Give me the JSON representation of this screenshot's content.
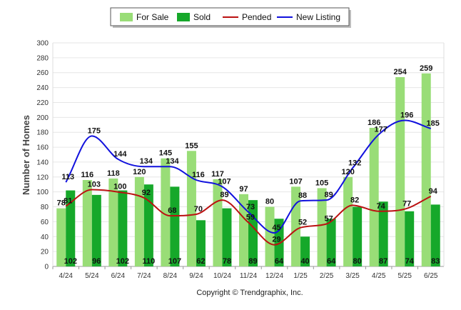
{
  "chart_data": {
    "type": "bar",
    "categories": [
      "4/24",
      "5/24",
      "6/24",
      "7/24",
      "8/24",
      "9/24",
      "10/24",
      "11/24",
      "12/24",
      "1/25",
      "2/25",
      "3/25",
      "4/25",
      "5/25",
      "6/25"
    ],
    "ylabel": "Number of Homes",
    "ylim": [
      0,
      300
    ],
    "yticks": [
      0,
      20,
      40,
      60,
      80,
      100,
      120,
      140,
      160,
      180,
      200,
      220,
      240,
      260,
      280,
      300
    ],
    "grid": true,
    "legend_position": "top",
    "series": [
      {
        "name": "For Sale",
        "kind": "bar",
        "color": "#99dd77",
        "values": [
          78,
          116,
          118,
          120,
          145,
          155,
          117,
          97,
          80,
          107,
          105,
          120,
          186,
          254,
          259
        ]
      },
      {
        "name": "Sold",
        "kind": "bar",
        "color": "#16a82a",
        "values": [
          102,
          96,
          102,
          110,
          107,
          62,
          78,
          89,
          64,
          40,
          64,
          80,
          87,
          74,
          83
        ]
      },
      {
        "name": "Pended",
        "kind": "line",
        "color": "#bb1111",
        "values": [
          81,
          103,
          100,
          92,
          68,
          70,
          89,
          59,
          29,
          52,
          57,
          82,
          74,
          77,
          94
        ]
      },
      {
        "name": "New Listing",
        "kind": "line",
        "color": "#1111dd",
        "values": [
          113,
          175,
          144,
          134,
          134,
          116,
          107,
          73,
          45,
          88,
          89,
          132,
          177,
          196,
          185
        ]
      }
    ]
  },
  "copyright": "Copyright © Trendgraphix, Inc."
}
